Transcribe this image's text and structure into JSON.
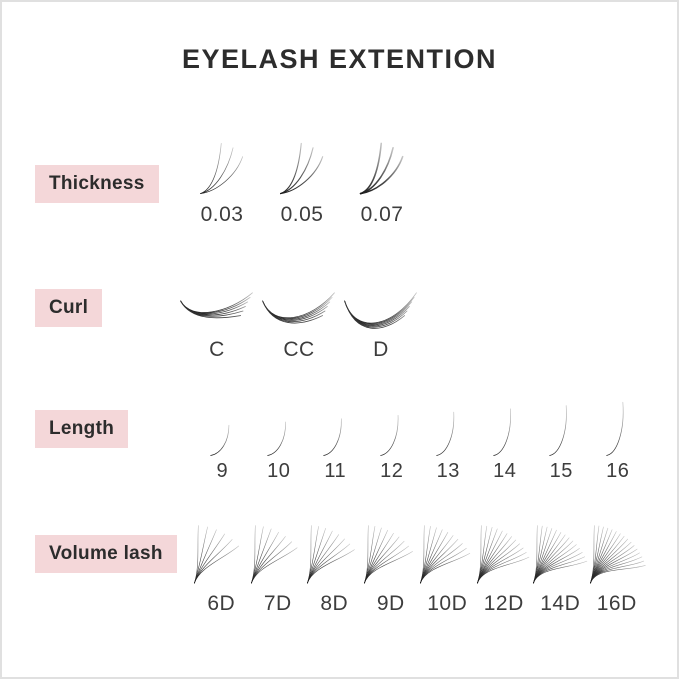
{
  "title": "EYELASH EXTENTION",
  "rows": {
    "thickness": {
      "label": "Thickness",
      "items": [
        "0.03",
        "0.05",
        "0.07"
      ]
    },
    "curl": {
      "label": "Curl",
      "items": [
        "C",
        "CC",
        "D"
      ]
    },
    "length": {
      "label": "Length",
      "items": [
        "9",
        "10",
        "11",
        "12",
        "13",
        "14",
        "15",
        "16"
      ]
    },
    "volume": {
      "label": "Volume lash",
      "items": [
        "6D",
        "7D",
        "8D",
        "9D",
        "10D",
        "12D",
        "14D",
        "16D"
      ]
    }
  },
  "colors": {
    "badge_bg": "#f4d7d9",
    "title_text": "#2d2d2d",
    "label_text": "#3d3d3d",
    "lash_dark": "#1a1a1a",
    "lash_mid": "#4b4b4b",
    "lash_light": "#c6c6c6",
    "frame_border": "#e0e0e0"
  }
}
